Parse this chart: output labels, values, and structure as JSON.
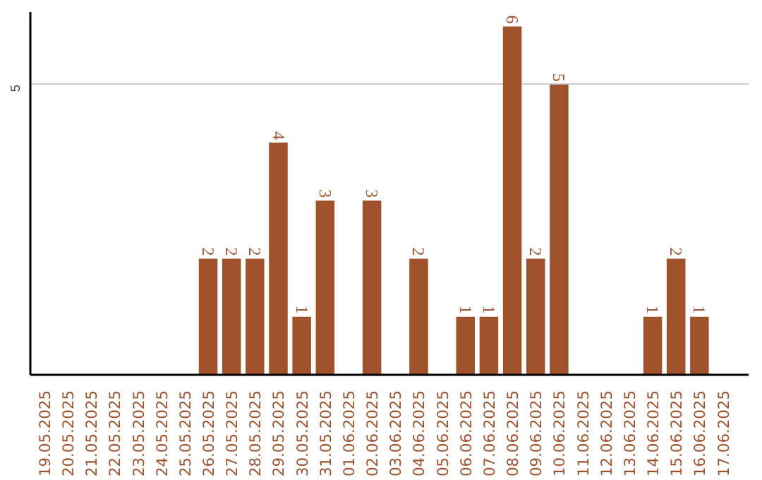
{
  "chart_data": {
    "type": "bar",
    "categories": [
      "19.05.2025",
      "20.05.2025",
      "21.05.2025",
      "22.05.2025",
      "23.05.2025",
      "24.05.2025",
      "25.05.2025",
      "26.05.2025",
      "27.05.2025",
      "28.05.2025",
      "29.05.2025",
      "30.05.2025",
      "31.05.2025",
      "01.06.2025",
      "02.06.2025",
      "03.06.2025",
      "04.06.2025",
      "05.06.2025",
      "06.06.2025",
      "07.06.2025",
      "08.06.2025",
      "09.06.2025",
      "10.06.2025",
      "11.06.2025",
      "12.06.2025",
      "13.06.2025",
      "14.06.2025",
      "15.06.2025",
      "16.06.2025",
      "17.06.2025"
    ],
    "values": [
      0,
      0,
      0,
      0,
      0,
      0,
      0,
      2,
      2,
      2,
      4,
      1,
      3,
      0,
      3,
      0,
      2,
      0,
      1,
      1,
      6,
      2,
      5,
      0,
      0,
      0,
      1,
      2,
      1,
      0
    ],
    "value_labels": [
      null,
      null,
      null,
      null,
      null,
      null,
      null,
      "2",
      "2",
      "2",
      "4",
      "1",
      "3",
      null,
      "3",
      null,
      "2",
      null,
      "1",
      "1",
      "6",
      "2",
      "5",
      null,
      null,
      null,
      "1",
      "2",
      "1",
      null
    ],
    "color": "#a0522d",
    "ylim": [
      0,
      6.25
    ],
    "yticks": [
      5
    ],
    "grid": "y"
  }
}
